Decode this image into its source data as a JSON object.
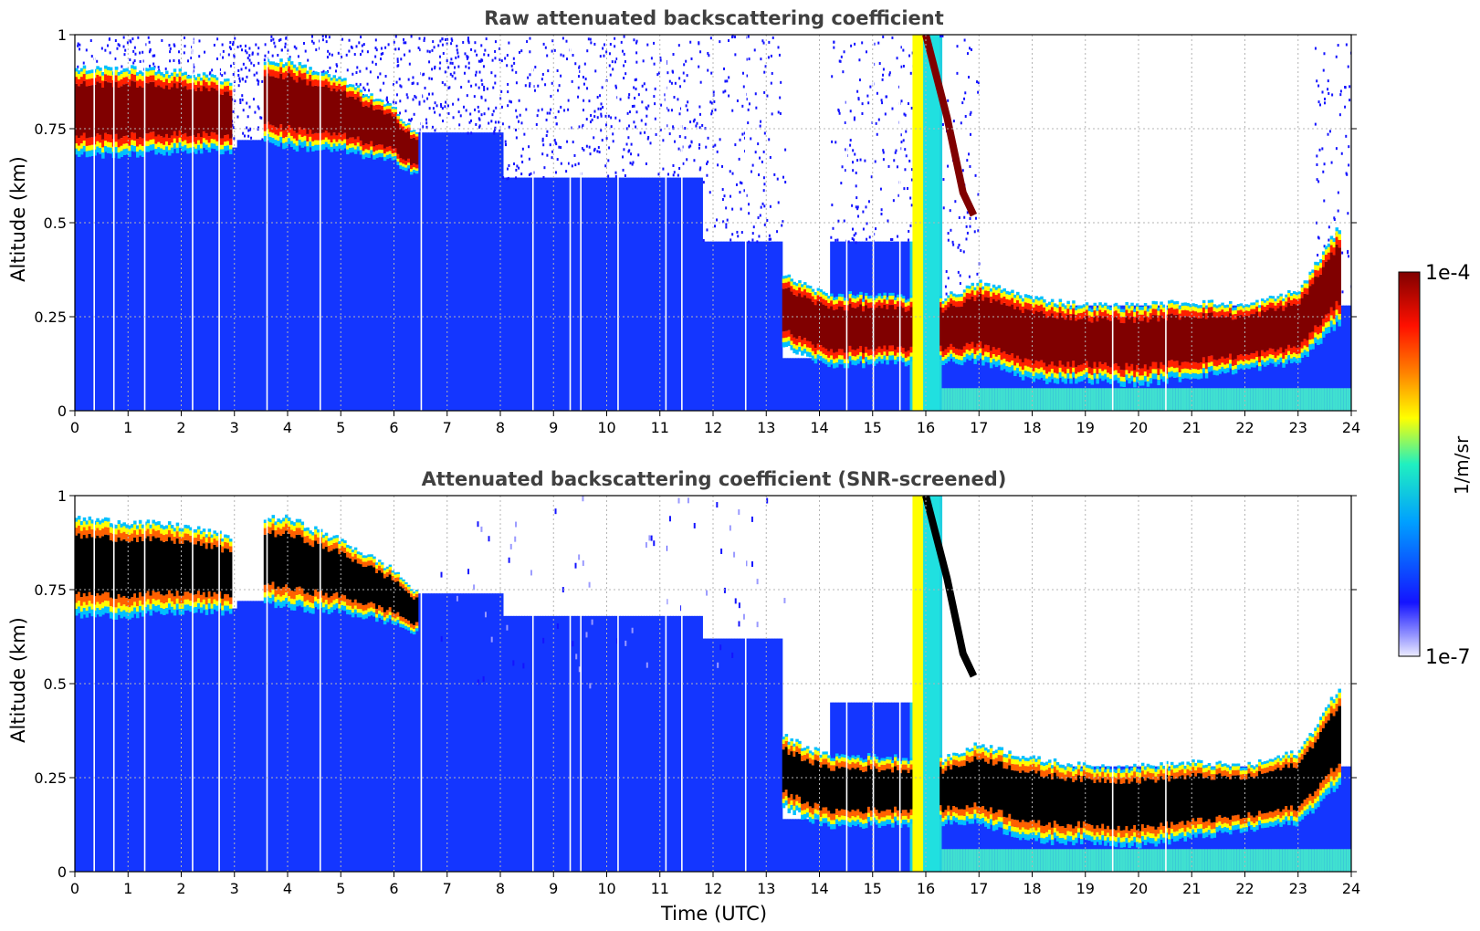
{
  "chart_data": [
    {
      "type": "heatmap",
      "title": "Raw attenuated backscattering coefficient",
      "ylabel": "Altitude (km)",
      "xlabel": "",
      "xlim": [
        0,
        24
      ],
      "ylim": [
        0,
        1
      ],
      "x_ticks": [
        "0",
        "1",
        "2",
        "3",
        "4",
        "5",
        "6",
        "7",
        "8",
        "9",
        "10",
        "11",
        "12",
        "13",
        "14",
        "15",
        "16",
        "17",
        "18",
        "19",
        "20",
        "21",
        "22",
        "23",
        "24"
      ],
      "y_ticks": [
        "0",
        "0.25",
        "0.5",
        "0.75",
        "1"
      ],
      "grid": true,
      "screened": false,
      "upper_layer": [
        [
          0,
          0.68,
          0.91
        ],
        [
          1,
          0.68,
          0.91
        ],
        [
          2,
          0.69,
          0.9
        ],
        [
          2.9,
          0.69,
          0.88
        ],
        [
          3.1,
          0.0,
          0.0
        ],
        [
          3.5,
          0.72,
          0.93
        ],
        [
          4,
          0.7,
          0.93
        ],
        [
          5,
          0.69,
          0.88
        ],
        [
          6,
          0.66,
          0.8
        ],
        [
          6.4,
          0.63,
          0.74
        ]
      ],
      "lower_layer": [
        [
          13.3,
          0.17,
          0.36
        ],
        [
          14.1,
          0.12,
          0.31
        ],
        [
          16.3,
          0.13,
          0.3
        ],
        [
          17,
          0.13,
          0.34
        ],
        [
          18,
          0.08,
          0.3
        ],
        [
          19,
          0.08,
          0.28
        ],
        [
          20,
          0.07,
          0.28
        ],
        [
          21,
          0.09,
          0.29
        ],
        [
          22,
          0.11,
          0.28
        ],
        [
          23,
          0.13,
          0.32
        ],
        [
          23.8,
          0.24,
          0.5
        ]
      ]
    },
    {
      "type": "heatmap",
      "title": "Attenuated backscattering coefficient (SNR-screened)",
      "ylabel": "Altitude (km)",
      "xlabel": "Time (UTC)",
      "xlim": [
        0,
        24
      ],
      "ylim": [
        0,
        1
      ],
      "x_ticks": [
        "0",
        "1",
        "2",
        "3",
        "4",
        "5",
        "6",
        "7",
        "8",
        "9",
        "10",
        "11",
        "12",
        "13",
        "14",
        "15",
        "16",
        "17",
        "18",
        "19",
        "20",
        "21",
        "22",
        "23",
        "24"
      ],
      "y_ticks": [
        "0",
        "0.25",
        "0.5",
        "0.75",
        "1"
      ],
      "grid": true,
      "screened": true,
      "upper_layer": [
        [
          0,
          0.68,
          0.94
        ],
        [
          1,
          0.68,
          0.93
        ],
        [
          2,
          0.69,
          0.92
        ],
        [
          2.9,
          0.69,
          0.89
        ],
        [
          3.1,
          0.0,
          0.0
        ],
        [
          3.5,
          0.72,
          0.94
        ],
        [
          4,
          0.7,
          0.94
        ],
        [
          5,
          0.69,
          0.88
        ],
        [
          6,
          0.66,
          0.8
        ],
        [
          6.4,
          0.63,
          0.74
        ]
      ],
      "lower_layer": [
        [
          13.3,
          0.17,
          0.36
        ],
        [
          14.1,
          0.12,
          0.31
        ],
        [
          16.3,
          0.13,
          0.3
        ],
        [
          17,
          0.13,
          0.34
        ],
        [
          18,
          0.08,
          0.3
        ],
        [
          19,
          0.08,
          0.28
        ],
        [
          20,
          0.07,
          0.28
        ],
        [
          21,
          0.09,
          0.29
        ],
        [
          22,
          0.11,
          0.28
        ],
        [
          23,
          0.13,
          0.32
        ],
        [
          23.8,
          0.24,
          0.5
        ]
      ]
    }
  ],
  "colorbar": {
    "max_label": "1e-4",
    "min_label": "1e-7",
    "unit_label": "1/m/sr",
    "colors": [
      "#ececff",
      "#1414ff",
      "#00a0ff",
      "#20f0c0",
      "#ffff00",
      "#ff8000",
      "#ff1000",
      "#800000"
    ]
  }
}
